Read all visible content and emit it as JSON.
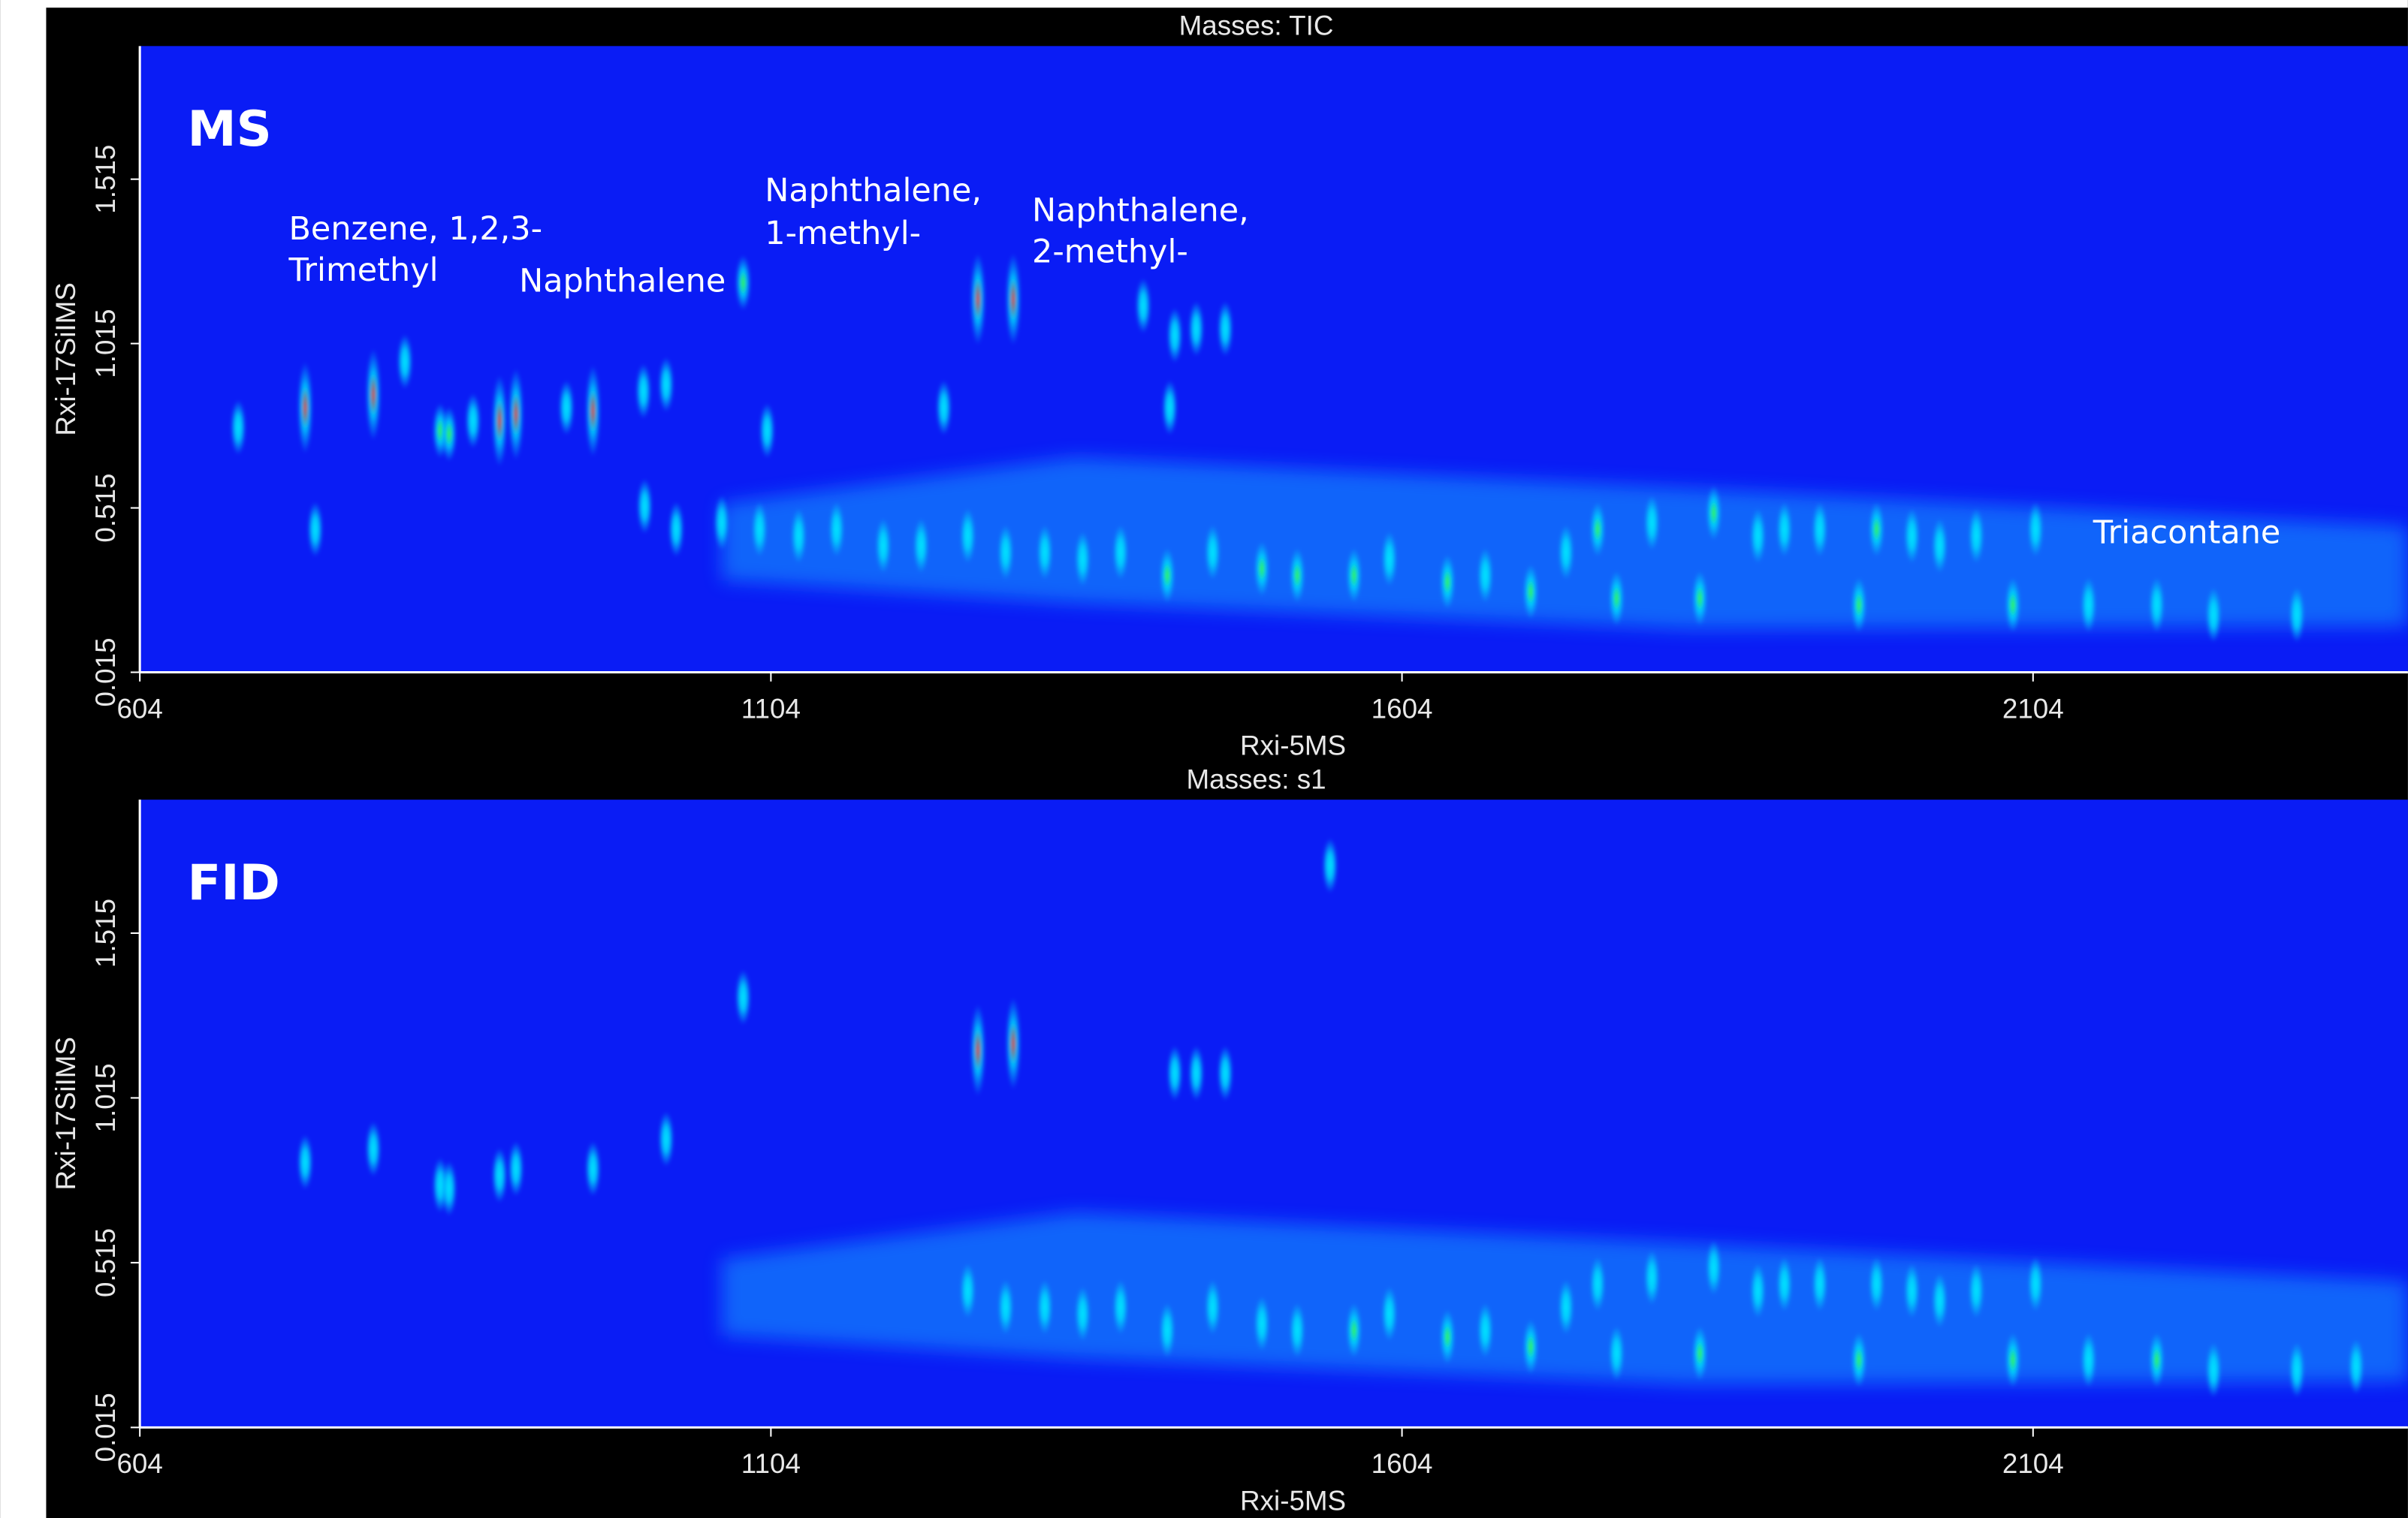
{
  "chart_data": [
    {
      "type": "contour",
      "title": "Masses: TIC",
      "label": "MS",
      "x_label": "Rxi-5MS",
      "y_label": "Rxi-17SiIMS",
      "xlim": [
        604,
        2401
      ],
      "ylim": [
        0.015,
        1.92
      ],
      "xticks": [
        604,
        1104,
        1604,
        2104
      ],
      "yticks": [
        0.015,
        0.515,
        1.015,
        1.515
      ],
      "background": "#0a1cf5",
      "annotations": [
        "Benzene, 1,2,3-",
        "Trimethyl",
        "Naphthalene",
        "Naphthalene,",
        "1-methyl-",
        "Naphthalene,",
        "2-methyl-",
        "Triacontane"
      ],
      "x": [
        682,
        743,
        735,
        789,
        814,
        842,
        849,
        868,
        889,
        902,
        942,
        963,
        1003,
        1021,
        1082,
        1101,
        1241,
        1268,
        1296,
        1399,
        1424,
        1441,
        1464,
        1420,
        1004,
        1029,
        1065,
        1095,
        1126,
        1156,
        1193,
        1223,
        1260,
        1290,
        1321,
        1351,
        1381,
        1418,
        1454,
        1493,
        1521,
        1566,
        1594,
        1640,
        1670,
        1706,
        1734,
        1759,
        1774,
        1802,
        1840,
        1851,
        1886,
        1907,
        1935,
        1966,
        1980,
        2008,
        2030,
        2059,
        2088,
        2106,
        2148,
        2202,
        2247,
        2313
      ],
      "y": [
        0.76,
        0.45,
        0.82,
        0.86,
        0.96,
        0.75,
        0.74,
        0.78,
        0.78,
        0.8,
        0.82,
        0.81,
        0.87,
        0.89,
        1.2,
        0.75,
        0.82,
        1.15,
        1.15,
        1.13,
        1.04,
        1.06,
        1.06,
        0.82,
        0.52,
        0.45,
        0.47,
        0.45,
        0.43,
        0.45,
        0.4,
        0.4,
        0.43,
        0.38,
        0.38,
        0.36,
        0.38,
        0.31,
        0.38,
        0.33,
        0.31,
        0.31,
        0.36,
        0.29,
        0.31,
        0.26,
        0.38,
        0.45,
        0.24,
        0.47,
        0.24,
        0.5,
        0.43,
        0.45,
        0.45,
        0.22,
        0.45,
        0.43,
        0.4,
        0.43,
        0.22,
        0.45,
        0.22,
        0.22,
        0.19,
        0.19
      ],
      "colors": [
        "#00e5ff",
        "#00e5ff",
        "#ff1a00",
        "#ff1a00",
        "#00e5ff",
        "#39ff14",
        "#39ff14",
        "#00e5ff",
        "#ff1a00",
        "#ff1a00",
        "#00e5ff",
        "#ff1a00",
        "#00e5ff",
        "#00e5ff",
        "#39ff14",
        "#00e5ff",
        "#00e5ff",
        "#ff1a00",
        "#ff1a00",
        "#00e5ff",
        "#00e5ff",
        "#00e5ff",
        "#00e5ff",
        "#00e5ff",
        "#00e5ff",
        "#00e5ff",
        "#00e5ff",
        "#00e5ff",
        "#00e5ff",
        "#00e5ff",
        "#00e5ff",
        "#00e5ff",
        "#00e5ff",
        "#00e5ff",
        "#00e5ff",
        "#00e5ff",
        "#00e5ff",
        "#39ff14",
        "#00e5ff",
        "#39ff14",
        "#39ff14",
        "#39ff14",
        "#00e5ff",
        "#39ff14",
        "#00e5ff",
        "#39ff14",
        "#00e5ff",
        "#39ff14",
        "#39ff14",
        "#00e5ff",
        "#39ff14",
        "#39ff14",
        "#00e5ff",
        "#00e5ff",
        "#00e5ff",
        "#39ff14",
        "#39ff14",
        "#00e5ff",
        "#00e5ff",
        "#00e5ff",
        "#39ff14",
        "#00e5ff",
        "#00e5ff",
        "#00e5ff",
        "#00e5ff",
        "#00e5ff"
      ]
    },
    {
      "type": "contour",
      "title": "Masses: s1",
      "label": "FID",
      "x_label": "Rxi-5MS",
      "y_label": "Rxi-17SiIMS",
      "xlim": [
        604,
        2401
      ],
      "ylim": [
        0.015,
        1.92
      ],
      "xticks": [
        604,
        1104,
        1604,
        2104
      ],
      "yticks": [
        0.015,
        0.515,
        1.015,
        1.515
      ],
      "background": "#0a1cf5",
      "x": [
        735,
        789,
        842,
        849,
        889,
        902,
        963,
        1021,
        1082,
        1268,
        1296,
        1424,
        1441,
        1464,
        1547,
        1260,
        1290,
        1321,
        1351,
        1381,
        1418,
        1454,
        1493,
        1521,
        1566,
        1594,
        1640,
        1670,
        1706,
        1734,
        1759,
        1774,
        1802,
        1840,
        1851,
        1886,
        1907,
        1935,
        1966,
        1980,
        2008,
        2030,
        2059,
        2088,
        2106,
        2148,
        2202,
        2247,
        2313,
        2360
      ],
      "y": [
        0.82,
        0.86,
        0.75,
        0.74,
        0.78,
        0.8,
        0.8,
        0.89,
        1.32,
        1.16,
        1.18,
        1.09,
        1.09,
        1.09,
        1.72,
        0.43,
        0.38,
        0.38,
        0.36,
        0.38,
        0.31,
        0.38,
        0.33,
        0.31,
        0.31,
        0.36,
        0.29,
        0.31,
        0.26,
        0.38,
        0.45,
        0.24,
        0.47,
        0.24,
        0.5,
        0.43,
        0.45,
        0.45,
        0.22,
        0.45,
        0.43,
        0.4,
        0.43,
        0.22,
        0.45,
        0.22,
        0.22,
        0.19,
        0.19,
        0.2
      ],
      "colors": [
        "#00e5ff",
        "#00e5ff",
        "#00e5ff",
        "#00e5ff",
        "#00e5ff",
        "#00e5ff",
        "#00e5ff",
        "#00e5ff",
        "#00e5ff",
        "#ff1a00",
        "#ff1a00",
        "#00e5ff",
        "#00e5ff",
        "#00e5ff",
        "#00e5ff",
        "#00e5ff",
        "#00e5ff",
        "#00e5ff",
        "#00e5ff",
        "#00e5ff",
        "#00e5ff",
        "#00e5ff",
        "#00e5ff",
        "#00e5ff",
        "#39ff14",
        "#00e5ff",
        "#39ff14",
        "#00e5ff",
        "#39ff14",
        "#00e5ff",
        "#00e5ff",
        "#00e5ff",
        "#00e5ff",
        "#39ff14",
        "#00e5ff",
        "#00e5ff",
        "#00e5ff",
        "#00e5ff",
        "#39ff14",
        "#00e5ff",
        "#00e5ff",
        "#00e5ff",
        "#00e5ff",
        "#39ff14",
        "#00e5ff",
        "#00e5ff",
        "#39ff14",
        "#00e5ff",
        "#00e5ff",
        "#00e5ff"
      ]
    }
  ]
}
